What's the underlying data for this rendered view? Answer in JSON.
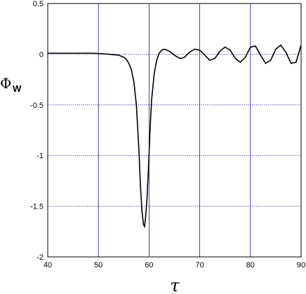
{
  "chart_data": {
    "type": "line",
    "title": "",
    "xlabel": "τ",
    "ylabel": "Φ",
    "ylabel_subscript": "W",
    "xlim": [
      40,
      90
    ],
    "ylim": [
      -2,
      0.5
    ],
    "xticks": [
      "40",
      "50",
      "60",
      "70",
      "80",
      "90"
    ],
    "yticks": [
      "0.5",
      "0",
      "-0.5",
      "-1",
      "-1.5",
      "-2"
    ],
    "grid": true,
    "grid_style": "dotted",
    "zero_line_style": "dotted",
    "colors": {
      "line": "#000000",
      "grid": "#1a1a8c",
      "frame": "#000000"
    },
    "series": [
      {
        "x": [
          40,
          45,
          49,
          52,
          54,
          55,
          55.5,
          56,
          56.5,
          57,
          57.5,
          58,
          58.3,
          58.6,
          58.9,
          59.1,
          59.3,
          59.6,
          59.9,
          60.2,
          60.5,
          61,
          61.5,
          62,
          62.5,
          63,
          63.5,
          64,
          65,
          66,
          66.5,
          67,
          68,
          69,
          70,
          71,
          72,
          73,
          74,
          75,
          76,
          77,
          78,
          79,
          80,
          81,
          82,
          83,
          84,
          85,
          86,
          87,
          88,
          89,
          90
        ],
        "y": [
          0.01,
          0.01,
          0.01,
          0.0,
          -0.01,
          -0.03,
          -0.05,
          -0.09,
          -0.15,
          -0.27,
          -0.5,
          -0.95,
          -1.3,
          -1.55,
          -1.68,
          -1.7,
          -1.62,
          -1.42,
          -1.1,
          -0.75,
          -0.45,
          -0.2,
          -0.06,
          0.01,
          0.04,
          0.05,
          0.04,
          0.03,
          -0.01,
          -0.04,
          -0.04,
          -0.03,
          0.02,
          0.05,
          0.04,
          -0.01,
          -0.06,
          -0.04,
          0.03,
          0.07,
          0.04,
          -0.04,
          -0.08,
          -0.03,
          0.07,
          0.08,
          -0.01,
          -0.09,
          -0.06,
          0.05,
          0.09,
          0.02,
          -0.09,
          -0.08,
          0.09
        ]
      }
    ]
  }
}
